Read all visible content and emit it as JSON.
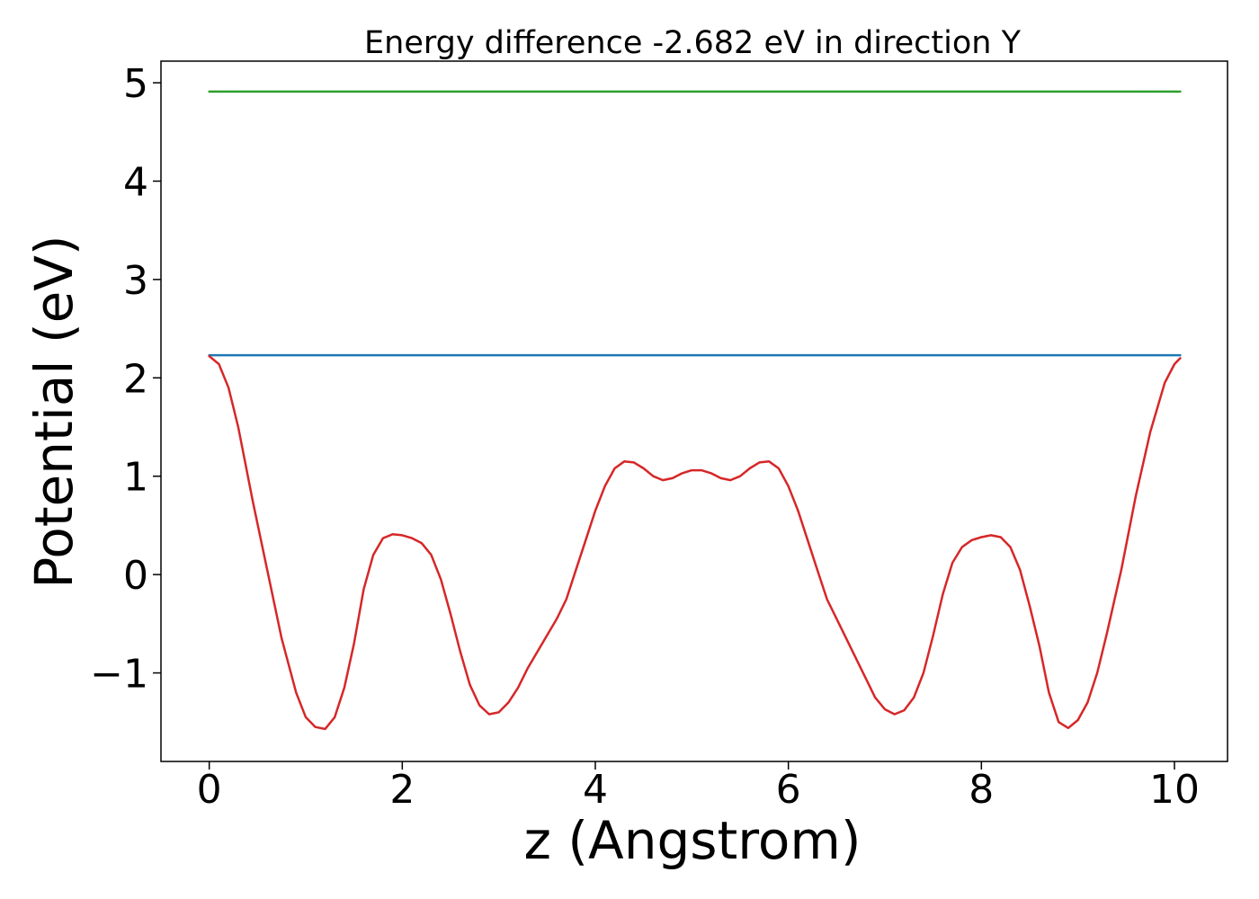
{
  "chart_data": {
    "type": "line",
    "title": "Energy difference -2.682 eV in direction Y",
    "xlabel": "z (Angstrom)",
    "ylabel": "Potential (eV)",
    "xlim": [
      -0.5,
      10.55
    ],
    "ylim": [
      -1.9,
      5.22
    ],
    "x_ticks": [
      0,
      2,
      4,
      6,
      8,
      10
    ],
    "x_tick_labels": [
      "0",
      "2",
      "4",
      "6",
      "8",
      "10"
    ],
    "y_ticks": [
      -1,
      0,
      1,
      2,
      3,
      4,
      5
    ],
    "y_tick_labels": [
      "−1",
      "0",
      "1",
      "2",
      "3",
      "4",
      "5"
    ],
    "grid": false,
    "series": [
      {
        "color": "#2ca02c",
        "x": [
          0,
          10.06
        ],
        "y": [
          4.91,
          4.91
        ]
      },
      {
        "color": "#1f77b4",
        "x": [
          0,
          10.06
        ],
        "y": [
          2.23,
          2.23
        ]
      },
      {
        "color": "#d62728",
        "x": [
          0,
          0.1,
          0.2,
          0.3,
          0.45,
          0.6,
          0.75,
          0.9,
          1.0,
          1.1,
          1.2,
          1.3,
          1.4,
          1.5,
          1.6,
          1.7,
          1.8,
          1.9,
          2.0,
          2.1,
          2.2,
          2.3,
          2.4,
          2.5,
          2.6,
          2.7,
          2.8,
          2.9,
          3.0,
          3.1,
          3.2,
          3.3,
          3.45,
          3.6,
          3.7,
          3.8,
          3.9,
          4.0,
          4.1,
          4.2,
          4.3,
          4.4,
          4.5,
          4.6,
          4.7,
          4.8,
          4.9,
          5.0,
          5.1,
          5.2,
          5.3,
          5.4,
          5.5,
          5.6,
          5.7,
          5.8,
          5.9,
          6.0,
          6.1,
          6.2,
          6.3,
          6.4,
          6.55,
          6.75,
          6.9,
          7.0,
          7.1,
          7.2,
          7.3,
          7.4,
          7.5,
          7.6,
          7.7,
          7.8,
          7.9,
          8.0,
          8.1,
          8.2,
          8.3,
          8.4,
          8.5,
          8.6,
          8.7,
          8.8,
          8.9,
          9.0,
          9.1,
          9.2,
          9.3,
          9.45,
          9.6,
          9.75,
          9.9,
          10.0,
          10.06
        ],
        "y": [
          2.22,
          2.14,
          1.9,
          1.5,
          0.75,
          0.05,
          -0.65,
          -1.2,
          -1.45,
          -1.55,
          -1.57,
          -1.45,
          -1.15,
          -0.7,
          -0.15,
          0.2,
          0.37,
          0.41,
          0.4,
          0.37,
          0.32,
          0.2,
          -0.05,
          -0.4,
          -0.78,
          -1.12,
          -1.33,
          -1.42,
          -1.4,
          -1.3,
          -1.15,
          -0.95,
          -0.7,
          -0.45,
          -0.25,
          0.05,
          0.35,
          0.65,
          0.9,
          1.08,
          1.15,
          1.14,
          1.08,
          1.0,
          0.96,
          0.98,
          1.03,
          1.06,
          1.06,
          1.03,
          0.98,
          0.96,
          1.0,
          1.08,
          1.14,
          1.15,
          1.08,
          0.9,
          0.65,
          0.35,
          0.05,
          -0.25,
          -0.55,
          -0.95,
          -1.25,
          -1.37,
          -1.42,
          -1.38,
          -1.25,
          -1.0,
          -0.62,
          -0.2,
          0.12,
          0.28,
          0.35,
          0.38,
          0.4,
          0.38,
          0.28,
          0.05,
          -0.32,
          -0.72,
          -1.2,
          -1.5,
          -1.56,
          -1.48,
          -1.3,
          -1.0,
          -0.6,
          0.05,
          0.8,
          1.45,
          1.95,
          2.14,
          2.2
        ]
      }
    ]
  }
}
